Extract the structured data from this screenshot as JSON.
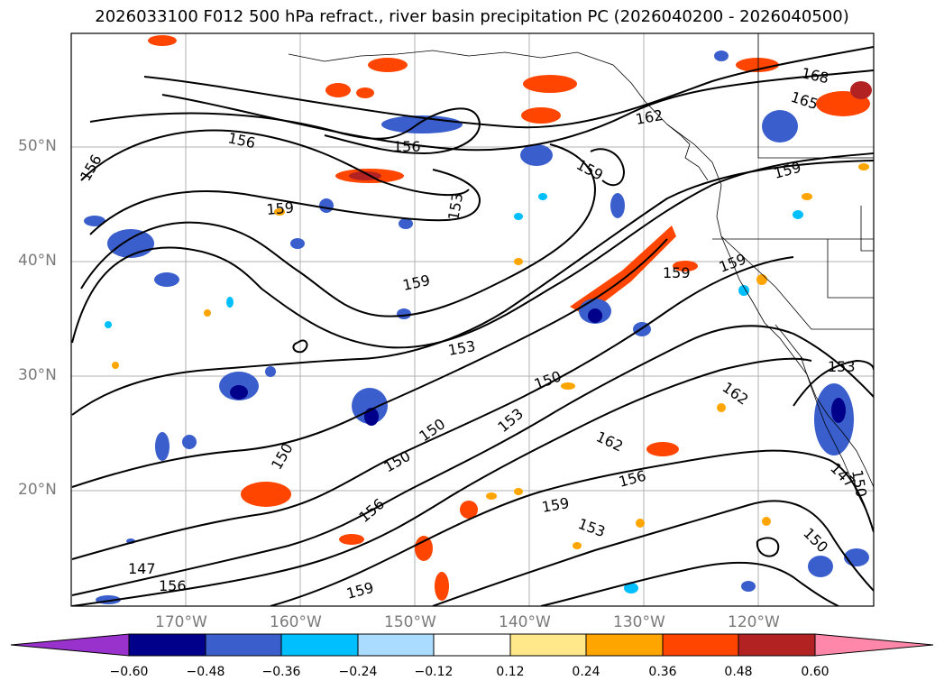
{
  "title": "2026033100 F012 500 hPa refract., river basin precipitation PC (2026040200 - 2026040500)",
  "map": {
    "lat_labels": [
      "50°N",
      "40°N",
      "30°N",
      "20°N"
    ],
    "lon_labels": [
      "170°W",
      "160°W",
      "150°W",
      "140°W",
      "130°W",
      "120°W"
    ],
    "contour_labels": [
      "168",
      "165",
      "162",
      "159",
      "156",
      "153",
      "150",
      "147"
    ],
    "gridlines": true
  },
  "colorbar": {
    "ticks": [
      "−0.60",
      "−0.48",
      "−0.36",
      "−0.24",
      "−0.12",
      "0.12",
      "0.24",
      "0.36",
      "0.48",
      "0.60"
    ],
    "colors": [
      "#9932cc",
      "#00008b",
      "#3a5fcd",
      "#00bfff",
      "#aadcff",
      "#ffffff",
      "#ffe88a",
      "#ffa500",
      "#ff4500",
      "#b22222",
      "#ff88aa"
    ],
    "extend": "both"
  }
}
